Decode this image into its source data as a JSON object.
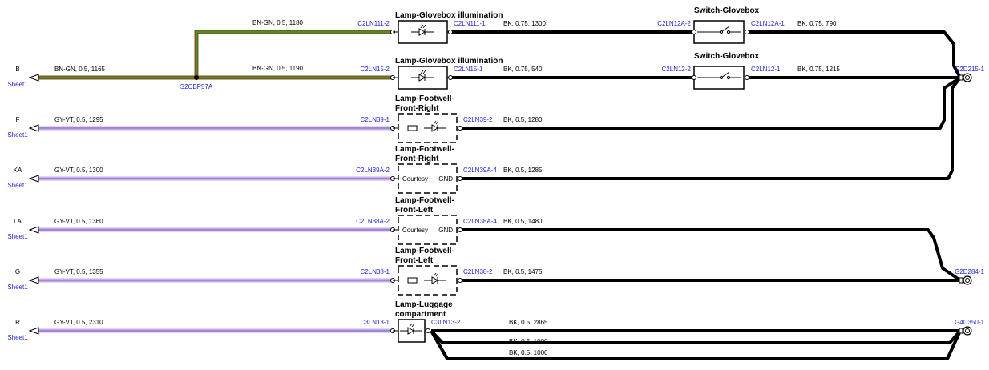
{
  "rows": [
    {
      "wire_in": "BN-GN, 0.5, 1180",
      "pin_in": "C2LN111-2",
      "component": [
        "Lamp-Glovebox illumination"
      ],
      "pin_out": "C2LN111-1",
      "wire_out": "BK, 0.75, 1300",
      "switch_pin_in": "C2LN12A-2",
      "switch": "Switch-Glovebox",
      "switch_pin_out": "C2LN12A-1",
      "wire_switch_out": "BK, 0.75, 790"
    },
    {
      "terminal": "B",
      "sheet": "Sheet1",
      "wire_source": "BN-GN, 0.5, 1165",
      "splice": "S2CBP57A",
      "wire_in": "BN-GN, 0.5, 1190",
      "pin_in": "C2LN15-2",
      "component": [
        "Lamp-Glovebox illumination"
      ],
      "pin_out": "C2LN15-1",
      "wire_out": "BK, 0.75, 540",
      "switch_pin_in": "C2LN12-2",
      "switch": "Switch-Glovebox",
      "switch_pin_out": "C2LN12-1",
      "wire_switch_out": "BK, 0.75, 1215",
      "ground": "G2D215-1"
    },
    {
      "terminal": "F",
      "sheet": "Sheet1",
      "wire_in": "GY-VT, 0.5, 1295",
      "pin_in": "C2LN39-1",
      "component": [
        "Lamp-Footwell-",
        "Front-Right"
      ],
      "pin_out": "C2LN39-2",
      "wire_out": "BK, 0.5, 1280"
    },
    {
      "terminal": "KA",
      "sheet": "Sheet1",
      "wire_in": "GY-VT, 0.5, 1300",
      "pin_in": "C2LN39A-2",
      "component": [
        "Lamp-Footwell-",
        "Front-Right"
      ],
      "inner_left": "Courtesy",
      "inner_right": "GND",
      "pin_out": "C2LN39A-4",
      "wire_out": "BK, 0.5, 1285"
    },
    {
      "terminal": "LA",
      "sheet": "Sheet1",
      "wire_in": "GY-VT, 0.5, 1360",
      "pin_in": "C2LN38A-2",
      "component": [
        "Lamp-Footwell-",
        "Front-Left"
      ],
      "inner_left": "Courtesy",
      "inner_right": "GND",
      "pin_out": "C2LN38A-4",
      "wire_out": "BK, 0.5, 1480"
    },
    {
      "terminal": "G",
      "sheet": "Sheet1",
      "wire_in": "GY-VT, 0.5, 1355",
      "pin_in": "C2LN38-1",
      "component": [
        "Lamp-Footwell-",
        "Front-Left"
      ],
      "pin_out": "C2LN38-2",
      "wire_out": "BK, 0.5, 1475",
      "ground": "G2D284-1"
    },
    {
      "terminal": "R",
      "sheet": "Sheet1",
      "wire_in": "GY-VT, 0.5, 2310",
      "pin_in": "C3LN13-1",
      "component": [
        "Lamp-Luggage",
        "compartment"
      ],
      "pin_out": "C3LN13-2",
      "wire_out": "BK, 0.5, 2865",
      "extra_wires": [
        "BK, 0.5, 1000",
        "BK, 0.5, 1000"
      ],
      "ground": "G4D350-1"
    }
  ]
}
